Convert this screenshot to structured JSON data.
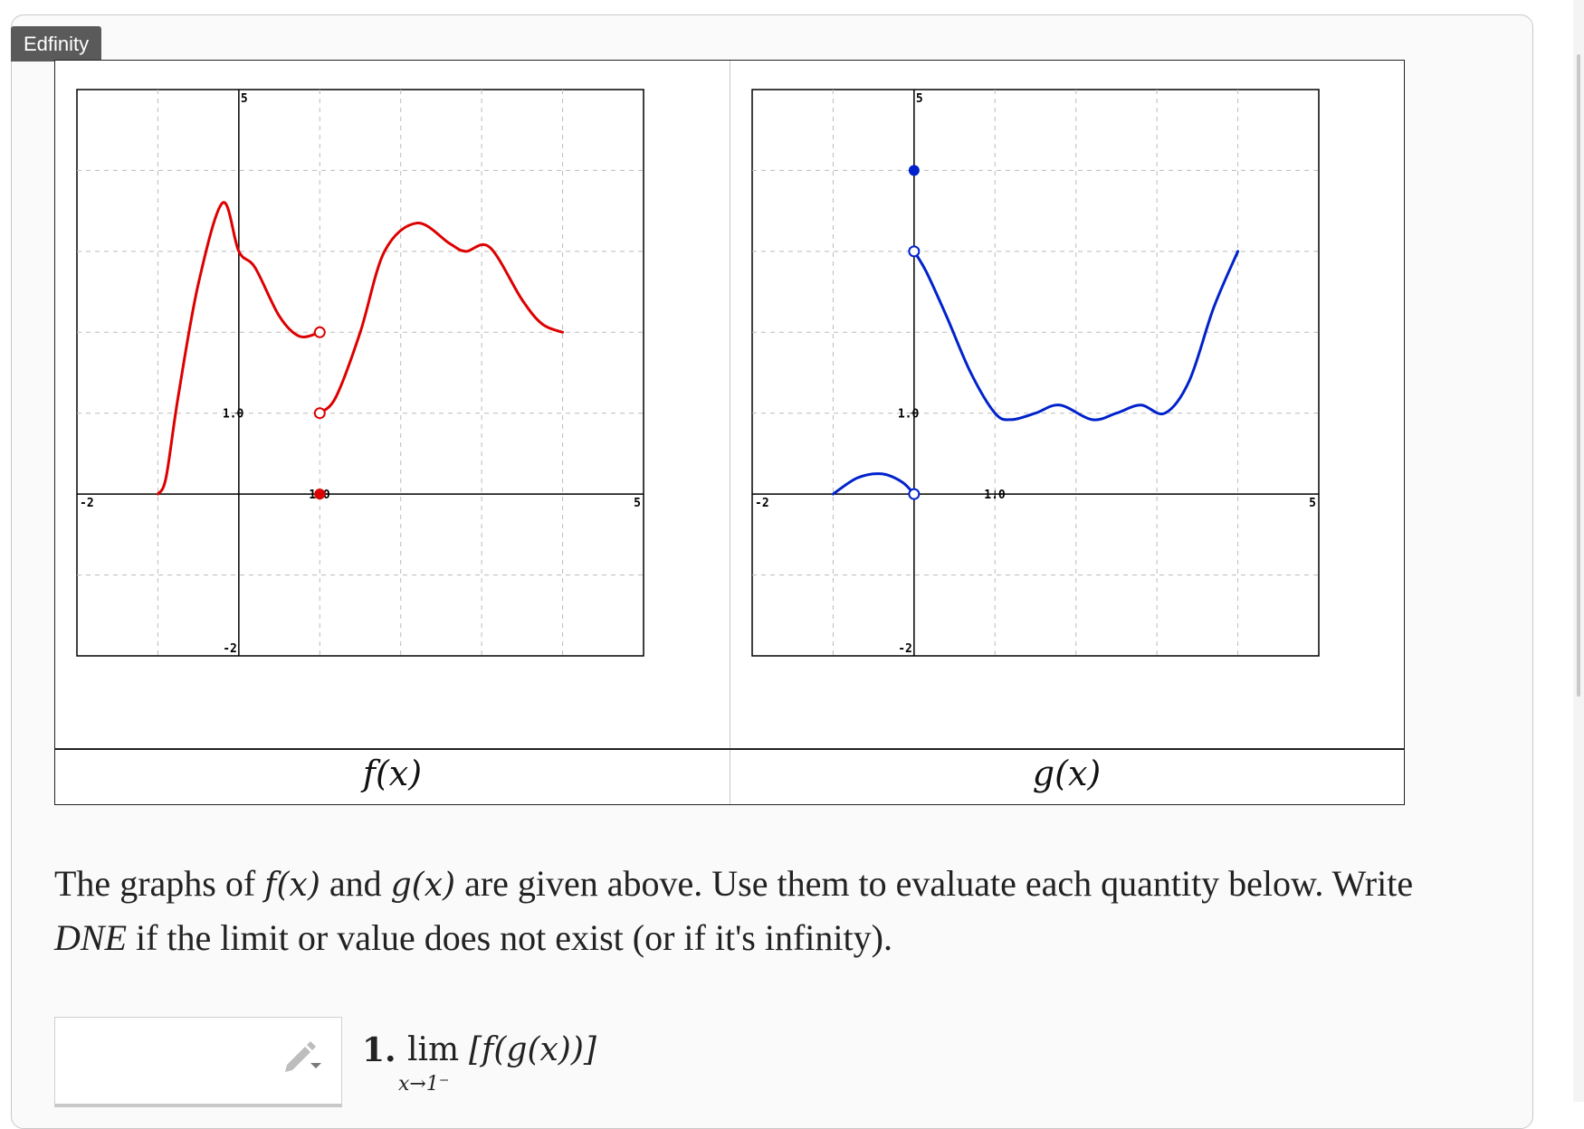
{
  "brand": "Edfinity",
  "graphs": {
    "f": {
      "caption": "f(x)",
      "color": "#dd0000",
      "xlim": [
        -2,
        5
      ],
      "ylim": [
        -2,
        5
      ],
      "tick_labels": {
        "x_left": "-2",
        "x_right": "5",
        "y_top": "5",
        "y_bottom": "-2",
        "y_one": "1.0",
        "x_one": "1.0"
      },
      "curves": [
        [
          [
            -1,
            0
          ],
          [
            -0.9,
            0.2
          ],
          [
            -0.75,
            1.2
          ],
          [
            -0.5,
            2.6
          ],
          [
            -0.2,
            3.6
          ],
          [
            0,
            3.0
          ],
          [
            0.2,
            2.8
          ],
          [
            0.5,
            2.2
          ],
          [
            0.75,
            1.95
          ],
          [
            1,
            2.0
          ]
        ],
        [
          [
            1,
            1.0
          ],
          [
            1.2,
            1.2
          ],
          [
            1.5,
            2.0
          ],
          [
            1.8,
            3.0
          ],
          [
            2.2,
            3.35
          ],
          [
            2.6,
            3.1
          ],
          [
            2.8,
            3.0
          ],
          [
            3.1,
            3.05
          ],
          [
            3.5,
            2.4
          ],
          [
            3.75,
            2.1
          ],
          [
            4,
            2.0
          ]
        ]
      ],
      "open_points": [
        [
          1,
          2
        ],
        [
          1,
          1
        ]
      ],
      "closed_points": [
        [
          1,
          0
        ]
      ]
    },
    "g": {
      "caption": "g(x)",
      "color": "#0022cc",
      "xlim": [
        -2,
        5
      ],
      "ylim": [
        -2,
        5
      ],
      "tick_labels": {
        "x_left": "-2",
        "x_right": "5",
        "y_top": "5",
        "y_bottom": "-2",
        "y_one": "1.0",
        "x_one": "1.0"
      },
      "curves": [
        [
          [
            -1,
            0
          ],
          [
            -0.7,
            0.2
          ],
          [
            -0.4,
            0.25
          ],
          [
            -0.15,
            0.15
          ],
          [
            0,
            0
          ]
        ],
        [
          [
            0,
            3
          ],
          [
            0.15,
            2.75
          ],
          [
            0.4,
            2.2
          ],
          [
            0.7,
            1.5
          ],
          [
            1,
            1.0
          ],
          [
            1.2,
            0.92
          ],
          [
            1.5,
            1.0
          ],
          [
            1.8,
            1.1
          ],
          [
            2.2,
            0.92
          ],
          [
            2.5,
            1.0
          ],
          [
            2.8,
            1.1
          ],
          [
            3.1,
            1.0
          ],
          [
            3.4,
            1.4
          ],
          [
            3.7,
            2.3
          ],
          [
            4,
            3.0
          ]
        ]
      ],
      "open_points": [
        [
          0,
          3
        ],
        [
          0,
          0
        ]
      ],
      "closed_points": [
        [
          0,
          4
        ]
      ]
    }
  },
  "instructions": {
    "p1": "The graphs of ",
    "f": "f(x)",
    "p2": " and ",
    "g": "g(x)",
    "p3": " are given above. Use them to evaluate each quantity below. Write ",
    "dne": "DNE",
    "p4": " if the limit or value does not exist (or if it's infinity)."
  },
  "question1": {
    "number": "1.",
    "lim": "lim",
    "expr": "[f(g(x))]",
    "subscript": "x→1⁻"
  },
  "answer1": {
    "value": ""
  }
}
